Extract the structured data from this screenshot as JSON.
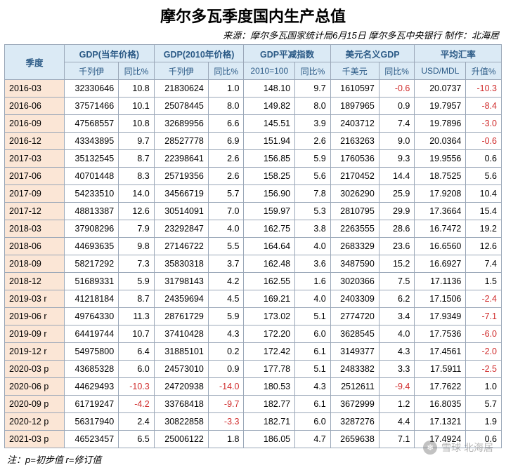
{
  "title": "摩尔多瓦季度国内生产总值",
  "source": "来源：摩尔多瓦国家统计局6月15日  摩尔多瓦中央银行 制作：北海居",
  "footnote": "注：p=初步值 r=修订值",
  "watermark_text": "雪球  北海居",
  "header": {
    "quarter": "季度",
    "groups": [
      {
        "label": "GDP(当年价格)",
        "subs": [
          "千列伊",
          "同比%"
        ]
      },
      {
        "label": "GDP(2010年价格)",
        "subs": [
          "千列伊",
          "同比%"
        ]
      },
      {
        "label": "GDP平减指数",
        "subs": [
          "2010=100",
          "同比%"
        ]
      },
      {
        "label": "美元名义GDP",
        "subs": [
          "千美元",
          "同比%"
        ]
      },
      {
        "label": "平均汇率",
        "subs": [
          "USD/MDL",
          "升值%"
        ]
      }
    ]
  },
  "rows": [
    {
      "q": "2016-03",
      "v": [
        "32330646",
        "10.8",
        "21830624",
        "1.0",
        "148.10",
        "9.7",
        "1610597",
        "-0.6",
        "20.0737",
        "-10.3"
      ]
    },
    {
      "q": "2016-06",
      "v": [
        "37571466",
        "10.1",
        "25078445",
        "8.0",
        "149.82",
        "8.0",
        "1897965",
        "0.9",
        "19.7957",
        "-8.4"
      ]
    },
    {
      "q": "2016-09",
      "v": [
        "47568557",
        "10.8",
        "32689956",
        "6.6",
        "145.51",
        "3.9",
        "2403712",
        "7.4",
        "19.7896",
        "-3.0"
      ]
    },
    {
      "q": "2016-12",
      "v": [
        "43343895",
        "9.7",
        "28527778",
        "6.9",
        "151.94",
        "2.6",
        "2163263",
        "9.0",
        "20.0364",
        "-0.6"
      ]
    },
    {
      "q": "2017-03",
      "v": [
        "35132545",
        "8.7",
        "22398641",
        "2.6",
        "156.85",
        "5.9",
        "1760536",
        "9.3",
        "19.9556",
        "0.6"
      ]
    },
    {
      "q": "2017-06",
      "v": [
        "40701448",
        "8.3",
        "25719356",
        "2.6",
        "158.25",
        "5.6",
        "2170452",
        "14.4",
        "18.7525",
        "5.6"
      ]
    },
    {
      "q": "2017-09",
      "v": [
        "54233510",
        "14.0",
        "34566719",
        "5.7",
        "156.90",
        "7.8",
        "3026290",
        "25.9",
        "17.9208",
        "10.4"
      ]
    },
    {
      "q": "2017-12",
      "v": [
        "48813387",
        "12.6",
        "30514091",
        "7.0",
        "159.97",
        "5.3",
        "2810795",
        "29.9",
        "17.3664",
        "15.4"
      ]
    },
    {
      "q": "2018-03",
      "v": [
        "37908296",
        "7.9",
        "23292847",
        "4.0",
        "162.75",
        "3.8",
        "2263555",
        "28.6",
        "16.7472",
        "19.2"
      ]
    },
    {
      "q": "2018-06",
      "v": [
        "44693635",
        "9.8",
        "27146722",
        "5.5",
        "164.64",
        "4.0",
        "2683329",
        "23.6",
        "16.6560",
        "12.6"
      ]
    },
    {
      "q": "2018-09",
      "v": [
        "58217292",
        "7.3",
        "35830318",
        "3.7",
        "162.48",
        "3.6",
        "3487590",
        "15.2",
        "16.6927",
        "7.4"
      ]
    },
    {
      "q": "2018-12",
      "v": [
        "51689331",
        "5.9",
        "31798143",
        "4.2",
        "162.55",
        "1.6",
        "3020366",
        "7.5",
        "17.1136",
        "1.5"
      ]
    },
    {
      "q": "2019-03 r",
      "v": [
        "41218184",
        "8.7",
        "24359694",
        "4.5",
        "169.21",
        "4.0",
        "2403309",
        "6.2",
        "17.1506",
        "-2.4"
      ]
    },
    {
      "q": "2019-06 r",
      "v": [
        "49764330",
        "11.3",
        "28761729",
        "5.9",
        "173.02",
        "5.1",
        "2774720",
        "3.4",
        "17.9349",
        "-7.1"
      ]
    },
    {
      "q": "2019-09 r",
      "v": [
        "64419744",
        "10.7",
        "37410428",
        "4.3",
        "172.20",
        "6.0",
        "3628545",
        "4.0",
        "17.7536",
        "-6.0"
      ]
    },
    {
      "q": "2019-12 r",
      "v": [
        "54975800",
        "6.4",
        "31885101",
        "0.2",
        "172.42",
        "6.1",
        "3149377",
        "4.3",
        "17.4561",
        "-2.0"
      ]
    },
    {
      "q": "2020-03 p",
      "v": [
        "43685328",
        "6.0",
        "24573010",
        "0.9",
        "177.78",
        "5.1",
        "2483382",
        "3.3",
        "17.5911",
        "-2.5"
      ]
    },
    {
      "q": "2020-06 p",
      "v": [
        "44629493",
        "-10.3",
        "24720938",
        "-14.0",
        "180.53",
        "4.3",
        "2512611",
        "-9.4",
        "17.7622",
        "1.0"
      ]
    },
    {
      "q": "2020-09 p",
      "v": [
        "61719247",
        "-4.2",
        "33768418",
        "-9.7",
        "182.77",
        "6.1",
        "3672999",
        "1.2",
        "16.8035",
        "5.7"
      ]
    },
    {
      "q": "2020-12 p",
      "v": [
        "56317940",
        "2.4",
        "30822858",
        "-3.3",
        "182.71",
        "6.0",
        "3287276",
        "4.4",
        "17.1321",
        "1.9"
      ]
    },
    {
      "q": "2021-03 p",
      "v": [
        "46523457",
        "6.5",
        "25006122",
        "1.8",
        "186.05",
        "4.7",
        "2659638",
        "7.1",
        "17.4924",
        "0.6"
      ]
    }
  ]
}
